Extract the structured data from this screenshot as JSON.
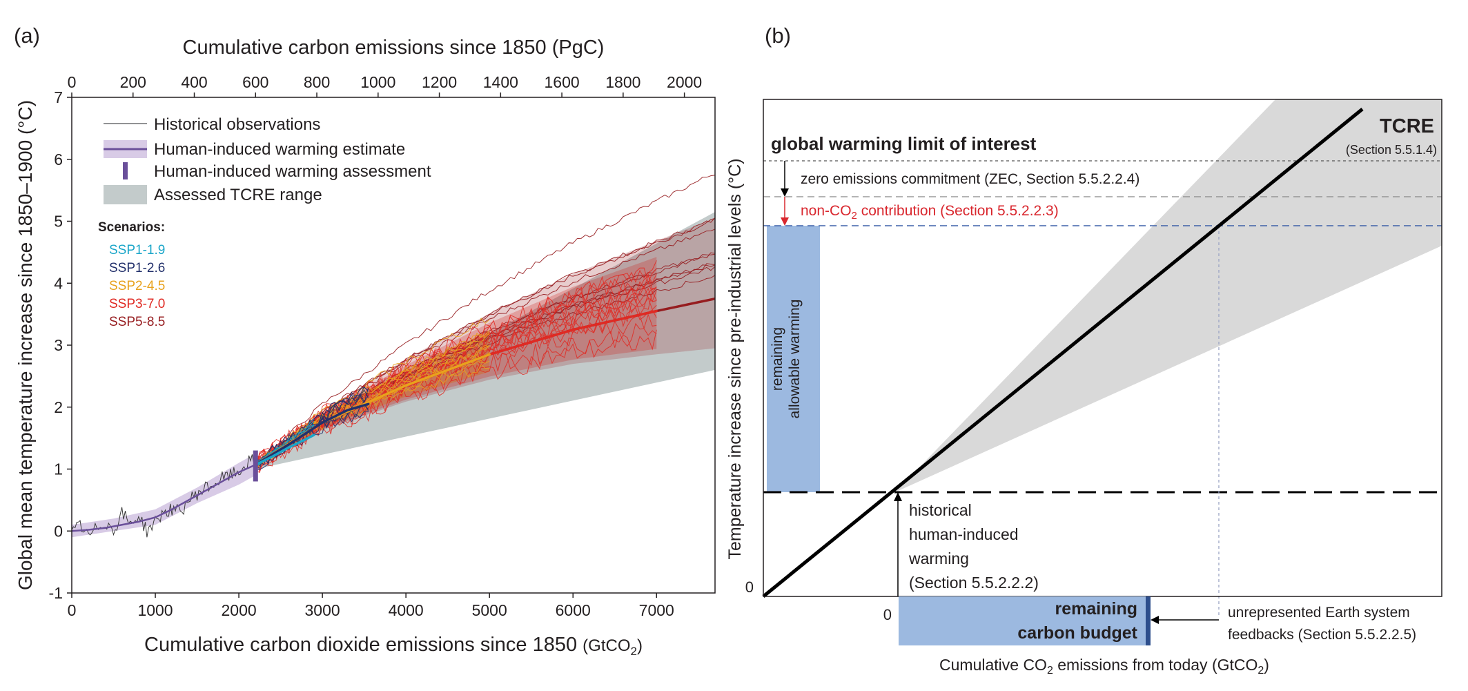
{
  "panel_a": {
    "label": "(a)",
    "legend": {
      "obs": "Historical observations",
      "hiw_est": "Human-induced warming estimate",
      "hiw_assess": "Human-induced warming assessment",
      "tcre": "Assessed TCRE range"
    },
    "scenarios_title": "Scenarios:",
    "scenario_names": [
      "SSP1-1.9",
      "SSP1-2.6",
      "SSP2-4.5",
      "SSP3-7.0",
      "SSP5-8.5"
    ],
    "xlabel_bottom_main": "Cumulative carbon dioxide emissions since 1850 ",
    "xlabel_bottom_unit_pre": "(GtCO",
    "xlabel_bottom_unit_sub": "2",
    "xlabel_bottom_unit_post": ")",
    "xlabel_top": "Cumulative carbon emissions since 1850 (PgC)",
    "ylabel": "Global mean temperature increase since 1850–1900 (°C)"
  },
  "panel_b": {
    "label": "(b)",
    "tcre_title": "TCRE",
    "tcre_ref": "(Section 5.5.1.4)",
    "limit_label": "global warming limit of interest",
    "zec_label": "zero emissions commitment (ZEC, Section 5.5.2.2.4)",
    "nonco2_pre": "non-CO",
    "nonco2_sub": "2",
    "nonco2_post": " contribution (Section 5.5.2.2.3)",
    "remaining_warming_line1": "remaining",
    "remaining_warming_line2": "allowable warming",
    "hist_line1": "historical",
    "hist_line2": "human-induced",
    "hist_line3": "warming",
    "hist_line4": "(Section 5.5.2.2.2)",
    "budget_line1": "remaining",
    "budget_line2": "carbon budget",
    "feedback_line1": "unrepresented Earth system",
    "feedback_line2": "feedbacks (Section 5.5.2.2.5)",
    "ylabel": "Temperature increase since pre-industrial levels (°C)",
    "xlabel_pre": "Cumulative CO",
    "xlabel_sub": "2",
    "xlabel_mid": " emissions from today (GtCO",
    "xlabel_sub2": "2",
    "xlabel_post": ")",
    "y_zero": "0",
    "x_zero": "0"
  },
  "colors": {
    "ssp119": "#1ba6c9",
    "ssp126": "#22306b",
    "ssp245": "#e8a21d",
    "ssp370": "#e02a23",
    "ssp585": "#961c1f",
    "hiw": "#6a4f9a",
    "hiw_band": "#d8cbe6",
    "tcre_band": "#c3cbcb",
    "budget_blue": "#9cb9e0",
    "nonco2_red": "#d9272e",
    "dash_blue": "#3d61a8"
  },
  "chart_data": [
    {
      "type": "line",
      "title": "",
      "xlabel": "Cumulative carbon dioxide emissions since 1850 (GtCO2)",
      "x2label": "Cumulative carbon emissions since 1850 (PgC)",
      "ylabel": "Global mean temperature increase since 1850–1900 (°C)",
      "xlim": [
        0,
        7700
      ],
      "ylim": [
        -1,
        7
      ],
      "x2lim": [
        0,
        2100
      ],
      "xticks": [
        0,
        1000,
        2000,
        3000,
        4000,
        5000,
        6000,
        7000
      ],
      "x2ticks": [
        0,
        200,
        400,
        600,
        800,
        1000,
        1200,
        1400,
        1600,
        1800,
        2000
      ],
      "yticks": [
        -1,
        0,
        1,
        2,
        3,
        4,
        5,
        6,
        7
      ],
      "legend_position": "top-left",
      "series": [
        {
          "name": "Historical observations",
          "x": [
            0,
            100,
            200,
            300,
            400,
            500,
            600,
            700,
            800,
            900,
            1000,
            1100,
            1200,
            1300,
            1400,
            1500,
            1600,
            1700,
            1800,
            1900,
            2000,
            2100,
            2200
          ],
          "y": [
            -0.05,
            0.1,
            -0.1,
            0.05,
            0.15,
            0.0,
            0.3,
            0.1,
            0.25,
            0.0,
            0.15,
            0.3,
            0.35,
            0.3,
            0.5,
            0.6,
            0.7,
            0.75,
            0.85,
            0.9,
            0.95,
            1.1,
            1.15
          ]
        },
        {
          "name": "Human-induced warming estimate",
          "x": [
            0,
            200,
            400,
            600,
            800,
            1000,
            1200,
            1400,
            1600,
            1800,
            2000,
            2200
          ],
          "y": [
            0.0,
            0.02,
            0.05,
            0.1,
            0.15,
            0.22,
            0.35,
            0.5,
            0.65,
            0.8,
            0.95,
            1.07
          ]
        },
        {
          "name": "SSP1-1.9",
          "x": [
            2200,
            2400,
            2600,
            2800,
            2900
          ],
          "y": [
            1.07,
            1.2,
            1.35,
            1.48,
            1.55
          ]
        },
        {
          "name": "SSP1-2.6",
          "x": [
            2200,
            2600,
            3000,
            3300,
            3550
          ],
          "y": [
            1.07,
            1.4,
            1.75,
            1.95,
            2.05
          ]
        },
        {
          "name": "SSP2-4.5",
          "x": [
            2200,
            3000,
            4000,
            5000
          ],
          "y": [
            1.07,
            1.75,
            2.35,
            2.85
          ]
        },
        {
          "name": "SSP3-7.0",
          "x": [
            2200,
            3000,
            4000,
            5000,
            6000,
            7000
          ],
          "y": [
            1.07,
            1.75,
            2.35,
            2.85,
            3.25,
            3.55
          ]
        },
        {
          "name": "SSP5-8.5",
          "x": [
            2200,
            3000,
            4000,
            5000,
            6000,
            7000,
            7700
          ],
          "y": [
            1.07,
            1.75,
            2.35,
            2.85,
            3.25,
            3.55,
            3.75
          ]
        }
      ],
      "bands": [
        {
          "name": "Human-induced warming estimate",
          "x": [
            0,
            500,
            1000,
            1500,
            2000,
            2200
          ],
          "lower": [
            -0.1,
            0.0,
            0.1,
            0.45,
            0.75,
            0.9
          ],
          "upper": [
            0.1,
            0.2,
            0.35,
            0.7,
            1.1,
            1.25
          ]
        },
        {
          "name": "Assessed TCRE range",
          "x": [
            2200,
            7700
          ],
          "lower": [
            1.0,
            2.6
          ],
          "upper": [
            1.15,
            5.15
          ]
        }
      ],
      "assessment_marker": {
        "x": 2200,
        "ymin": 0.8,
        "ymax": 1.3
      }
    },
    {
      "type": "line",
      "title": "",
      "xlabel": "Cumulative CO2 emissions from today (GtCO2)",
      "ylabel": "Temperature increase since pre-industrial levels (°C)",
      "series": [
        {
          "name": "TCRE"
        }
      ]
    }
  ]
}
